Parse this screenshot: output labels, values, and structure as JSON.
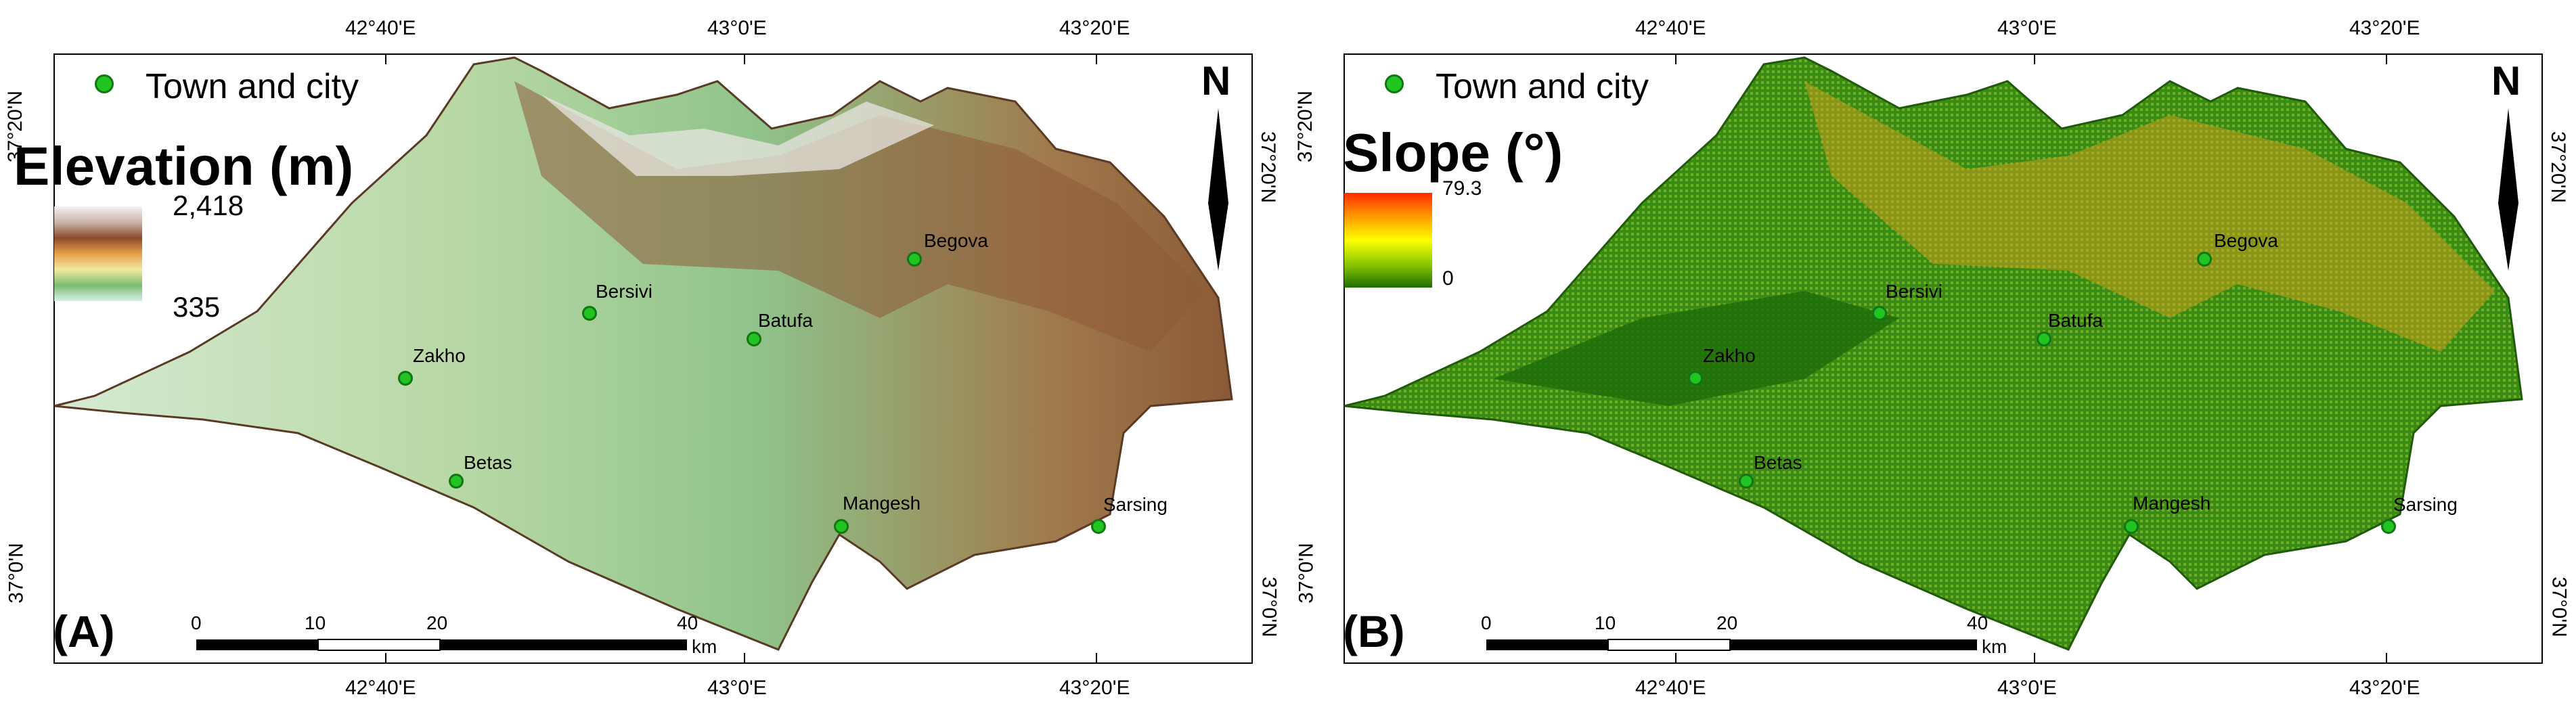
{
  "panels": [
    {
      "id": "A",
      "panel_label": "(A)",
      "legend": {
        "town_label": "Town and city",
        "title": "Elevation (m)",
        "max_label": "2,418",
        "min_label": "335",
        "ramp_colors": [
          "#f0f0f0",
          "#c8b4a8",
          "#8c4a2a",
          "#e8a048",
          "#f4e8a0",
          "#7cbc6c",
          "#d0ece8"
        ]
      },
      "north": "N",
      "top_lon_labels": [
        "42°40'E",
        "43°0'E",
        "43°20'E"
      ],
      "bottom_lon_labels": [
        "42°40'E",
        "43°0'E",
        "43°20'E"
      ],
      "left_lat_labels": [
        "37°20'N",
        "37°0'N"
      ],
      "right_lat_labels": [
        "37°20'N",
        "37°0'N"
      ],
      "scale": {
        "ticks": [
          "0",
          "10",
          "20",
          "40"
        ],
        "unit": "km"
      },
      "towns": [
        "Bersivi",
        "Begova",
        "Batufa",
        "Zakho",
        "Betas",
        "Mangesh",
        "Sarsing"
      ]
    },
    {
      "id": "B",
      "panel_label": "(B)",
      "legend": {
        "town_label": "Town and city",
        "title": "Slope (°)",
        "max_label": "79.3",
        "min_label": "0",
        "ramp_colors": [
          "#ff2a00",
          "#ff9a00",
          "#ffff00",
          "#8cc800",
          "#1e6e00"
        ]
      },
      "north": "N",
      "top_lon_labels": [
        "42°40'E",
        "43°0'E",
        "43°20'E"
      ],
      "bottom_lon_labels": [
        "42°40'E",
        "43°0'E",
        "43°20'E"
      ],
      "left_lat_labels": [
        "37°20'N",
        "37°0'N"
      ],
      "right_lat_labels": [
        "37°20'N",
        "37°0'N"
      ],
      "scale": {
        "ticks": [
          "0",
          "10",
          "20",
          "40"
        ],
        "unit": "km"
      },
      "towns": [
        "Bersivi",
        "Begova",
        "Batufa",
        "Zakho",
        "Betas",
        "Mangesh",
        "Sarsing"
      ]
    }
  ],
  "colors": {
    "town_marker": "#22c422",
    "elevation_base": "#9fcf9a",
    "slope_base": "#2f7d12"
  }
}
